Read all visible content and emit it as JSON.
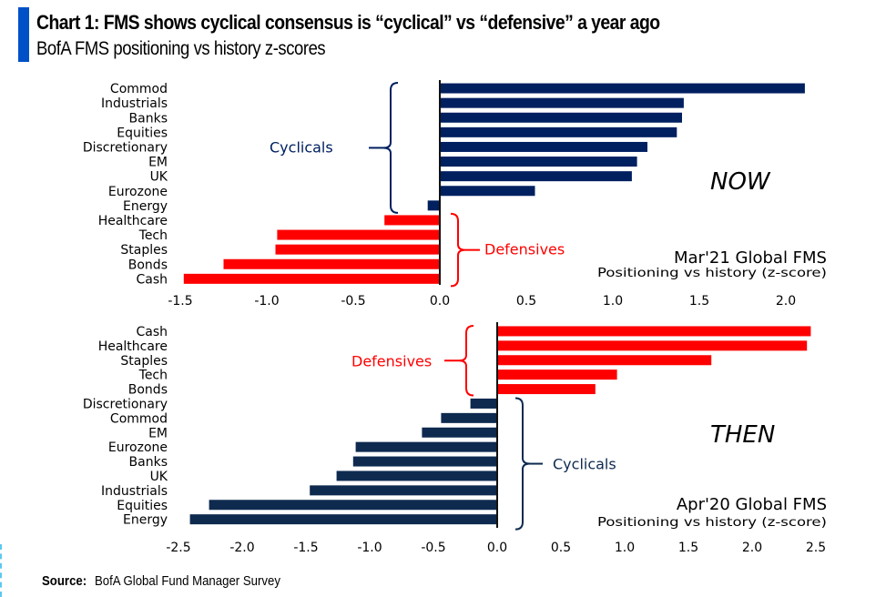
{
  "header": {
    "title": "Chart 1: FMS shows cyclical consensus is “cyclical” vs “defensive” a year ago",
    "subtitle": "BofA FMS positioning vs history z-scores"
  },
  "footer": {
    "source_label": "Source:",
    "source_text": "BofA Global Fund Manager Survey"
  },
  "colors": {
    "title_accent": "#0050c8",
    "cyclical_now": "#002060",
    "cyclical_then": "#0e2a4f",
    "defensive": "#ff0000"
  },
  "chart_data": [
    {
      "type": "bar",
      "orientation": "horizontal",
      "id": "now",
      "title": "Mar'21 Global FMS",
      "subtitle": "Positioning vs history (z-score)",
      "tag": "NOW",
      "xlabel": "",
      "ylabel": "",
      "xlim": [
        -1.5,
        2.25
      ],
      "xticks": [
        -1.5,
        -1.0,
        -0.5,
        0.0,
        0.5,
        1.0,
        1.5,
        2.0
      ],
      "xtick_labels": [
        "-1.5",
        "-1.0",
        "-0.5",
        "0.0",
        "0.5",
        "1.0",
        "1.5",
        "2.0"
      ],
      "grid": false,
      "categories": [
        "Commod",
        "Industrials",
        "Banks",
        "Equities",
        "Discretionary",
        "EM",
        "UK",
        "Eurozone",
        "Energy",
        "Healthcare",
        "Tech",
        "Staples",
        "Bonds",
        "Cash"
      ],
      "values": [
        2.11,
        1.41,
        1.4,
        1.37,
        1.2,
        1.14,
        1.11,
        0.55,
        -0.07,
        -0.32,
        -0.94,
        -0.95,
        -1.25,
        -1.48
      ],
      "groups": [
        "cyclical",
        "cyclical",
        "cyclical",
        "cyclical",
        "cyclical",
        "cyclical",
        "cyclical",
        "cyclical",
        "cyclical",
        "defensive",
        "defensive",
        "defensive",
        "defensive",
        "defensive"
      ],
      "annotations": [
        {
          "text": "Cyclicals",
          "group": "cyclical"
        },
        {
          "text": "Defensives",
          "group": "defensive"
        }
      ]
    },
    {
      "type": "bar",
      "orientation": "horizontal",
      "id": "then",
      "title": "Apr'20 Global FMS",
      "subtitle": "Positioning vs history (z-score)",
      "tag": "THEN",
      "xlabel": "",
      "ylabel": "",
      "xlim": [
        -2.5,
        2.5
      ],
      "xticks": [
        -2.5,
        -2.0,
        -1.5,
        -1.0,
        -0.5,
        0.0,
        0.5,
        1.0,
        1.5,
        2.0,
        2.5
      ],
      "xtick_labels": [
        "-2.5",
        "-2.0",
        "-1.5",
        "-1.0",
        "-0.5",
        "0.0",
        "0.5",
        "1.0",
        "1.5",
        "2.0",
        "2.5"
      ],
      "grid": false,
      "categories": [
        "Cash",
        "Healthcare",
        "Staples",
        "Tech",
        "Bonds",
        "Discretionary",
        "Commod",
        "EM",
        "Eurozone",
        "Banks",
        "UK",
        "Industrials",
        "Equities",
        "Energy"
      ],
      "values": [
        2.46,
        2.43,
        1.68,
        0.94,
        0.77,
        -0.21,
        -0.44,
        -0.59,
        -1.11,
        -1.13,
        -1.26,
        -1.47,
        -2.26,
        -2.41
      ],
      "groups": [
        "defensive",
        "defensive",
        "defensive",
        "defensive",
        "defensive",
        "cyclical",
        "cyclical",
        "cyclical",
        "cyclical",
        "cyclical",
        "cyclical",
        "cyclical",
        "cyclical",
        "cyclical"
      ],
      "annotations": [
        {
          "text": "Defensives",
          "group": "defensive"
        },
        {
          "text": "Cyclicals",
          "group": "cyclical"
        }
      ]
    }
  ]
}
